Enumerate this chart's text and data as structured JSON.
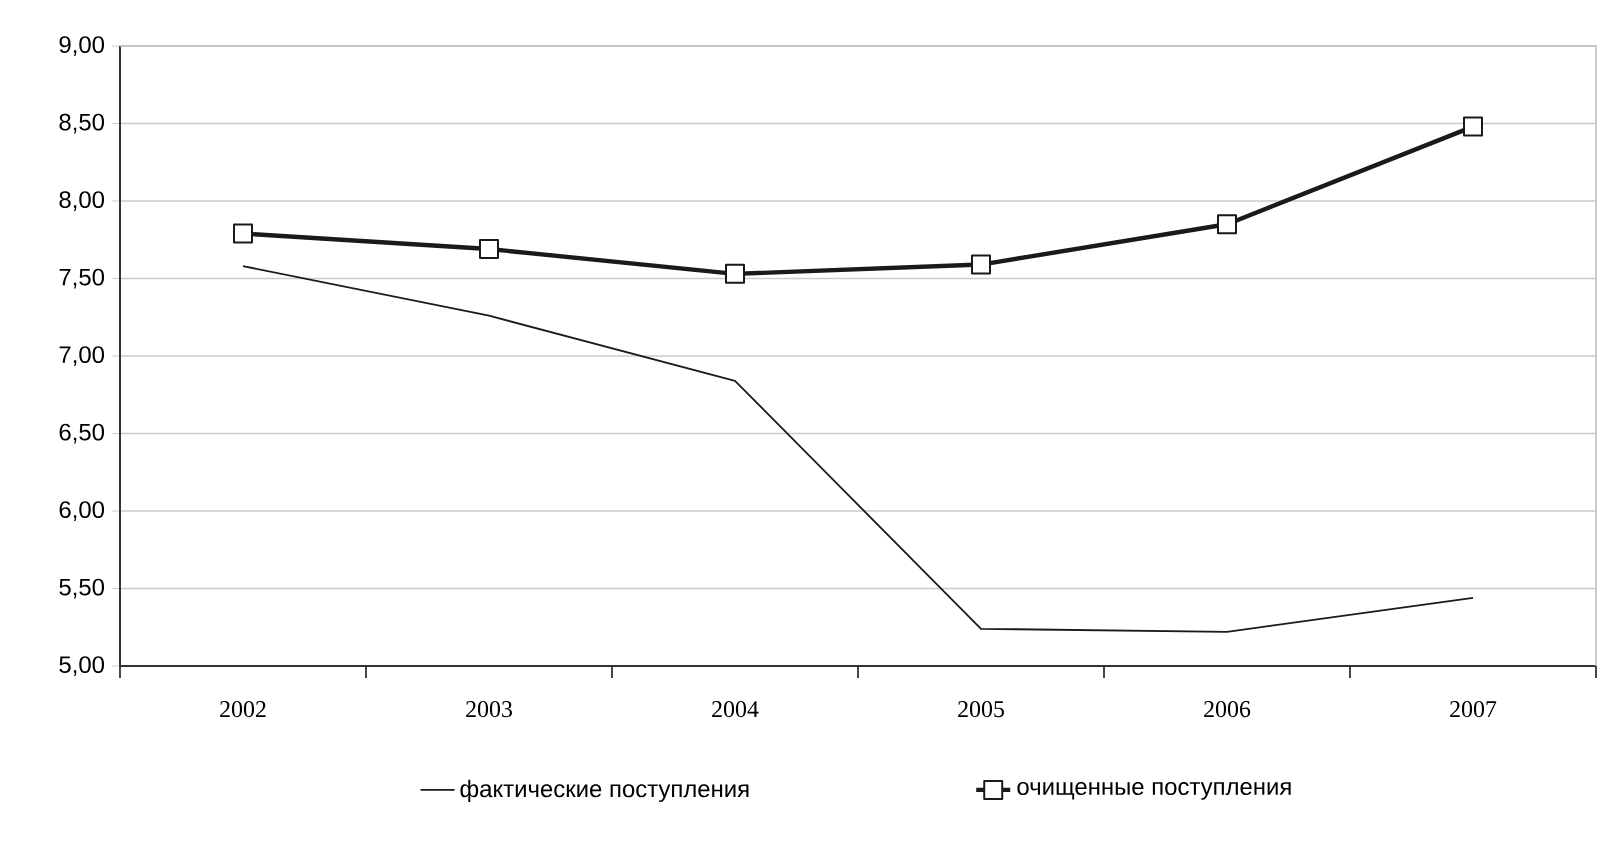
{
  "chart_data": {
    "type": "line",
    "categories": [
      "2002",
      "2003",
      "2004",
      "2005",
      "2006",
      "2007"
    ],
    "series": [
      {
        "name": "фактические поступления",
        "color": "#1a1a1a",
        "marker": "none",
        "values": [
          7.58,
          7.26,
          6.84,
          5.24,
          5.22,
          5.44
        ]
      },
      {
        "name": "очищенные поступления",
        "color": "#1a1a1a",
        "marker": "square",
        "values": [
          7.79,
          7.69,
          7.53,
          7.59,
          7.85,
          8.48
        ]
      }
    ],
    "ylim": [
      5,
      9
    ],
    "yticks": [
      {
        "value": 5,
        "label": "5,00"
      },
      {
        "value": 5.5,
        "label": "5,50"
      },
      {
        "value": 6,
        "label": "6,00"
      },
      {
        "value": 6.5,
        "label": "6,50"
      },
      {
        "value": 7,
        "label": "7,00"
      },
      {
        "value": 7.5,
        "label": "7,50"
      },
      {
        "value": 8,
        "label": "8,00"
      },
      {
        "value": 8.5,
        "label": "8,50"
      },
      {
        "value": 9,
        "label": "9,00"
      }
    ],
    "grid": "y",
    "legend": "bottom"
  }
}
